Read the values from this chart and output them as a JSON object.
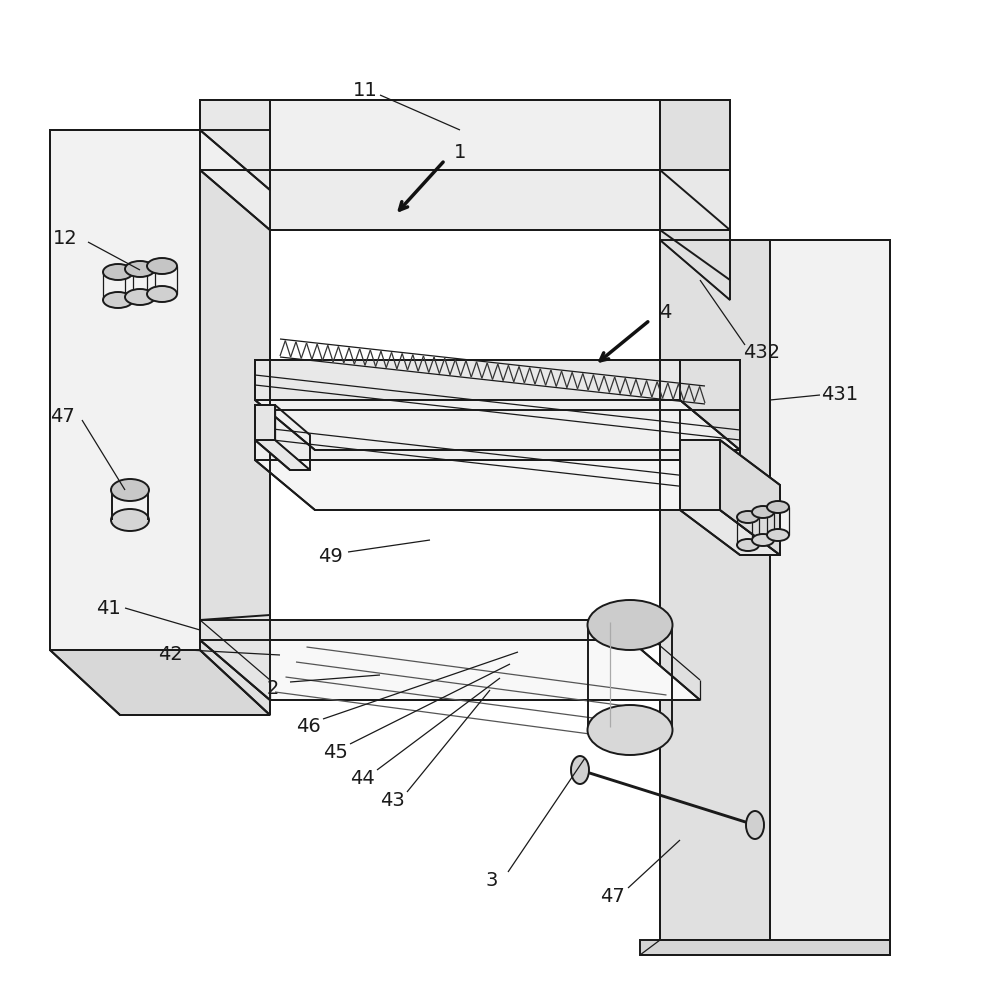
{
  "bg_color": "#ffffff",
  "lc": "#1a1a1a",
  "lw": 1.4,
  "tlw": 0.9,
  "figsize": [
    9.89,
    10.0
  ],
  "dpi": 100
}
